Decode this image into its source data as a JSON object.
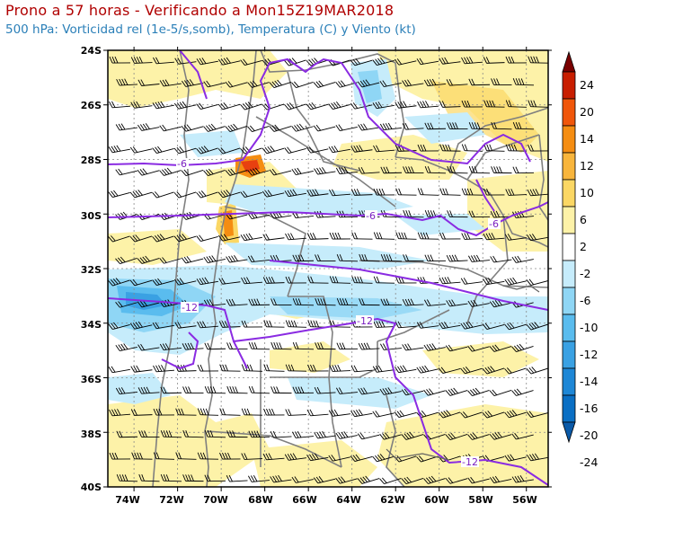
{
  "header": {
    "title": "Prono a 57 horas - Verificando a Mon15Z19MAR2018",
    "subtitle": "500 hPa: Vorticidad rel (1e-5/s,somb), Temperatura (C) y Viento (kt)"
  },
  "map": {
    "lat_labels": [
      "24S",
      "26S",
      "28S",
      "30S",
      "32S",
      "34S",
      "36S",
      "38S",
      "40S"
    ],
    "lon_labels": [
      "74W",
      "72W",
      "70W",
      "68W",
      "66W",
      "64W",
      "62W",
      "60W",
      "58W",
      "56W"
    ],
    "lon_range": [
      -75.2,
      -55.0
    ],
    "lat_range": [
      -40,
      -24
    ],
    "temperature_contour_labels": [
      "-6",
      "-6",
      "-6",
      "-12",
      "-12",
      "-12"
    ]
  },
  "colorbar": {
    "labels": [
      "24",
      "20",
      "14",
      "12",
      "10",
      "6",
      "2",
      "-2",
      "-6",
      "-10",
      "-12",
      "-14",
      "-16",
      "-20",
      "-24"
    ],
    "colors": [
      "#7a0000",
      "#c81e00",
      "#f0560a",
      "#f58d12",
      "#f8b53c",
      "#fbd764",
      "#fdf2a8",
      "#ffffff",
      "#c6ecfb",
      "#8fd6f5",
      "#5abcee",
      "#3aa1e3",
      "#1e87d6",
      "#0a6fc4",
      "#0a5aa8"
    ]
  },
  "theme": {
    "title_color": "#b00000",
    "subtitle_color": "#2a7fb8",
    "contour_color": "#8a2be2",
    "border_color": "#7f7f7f"
  }
}
